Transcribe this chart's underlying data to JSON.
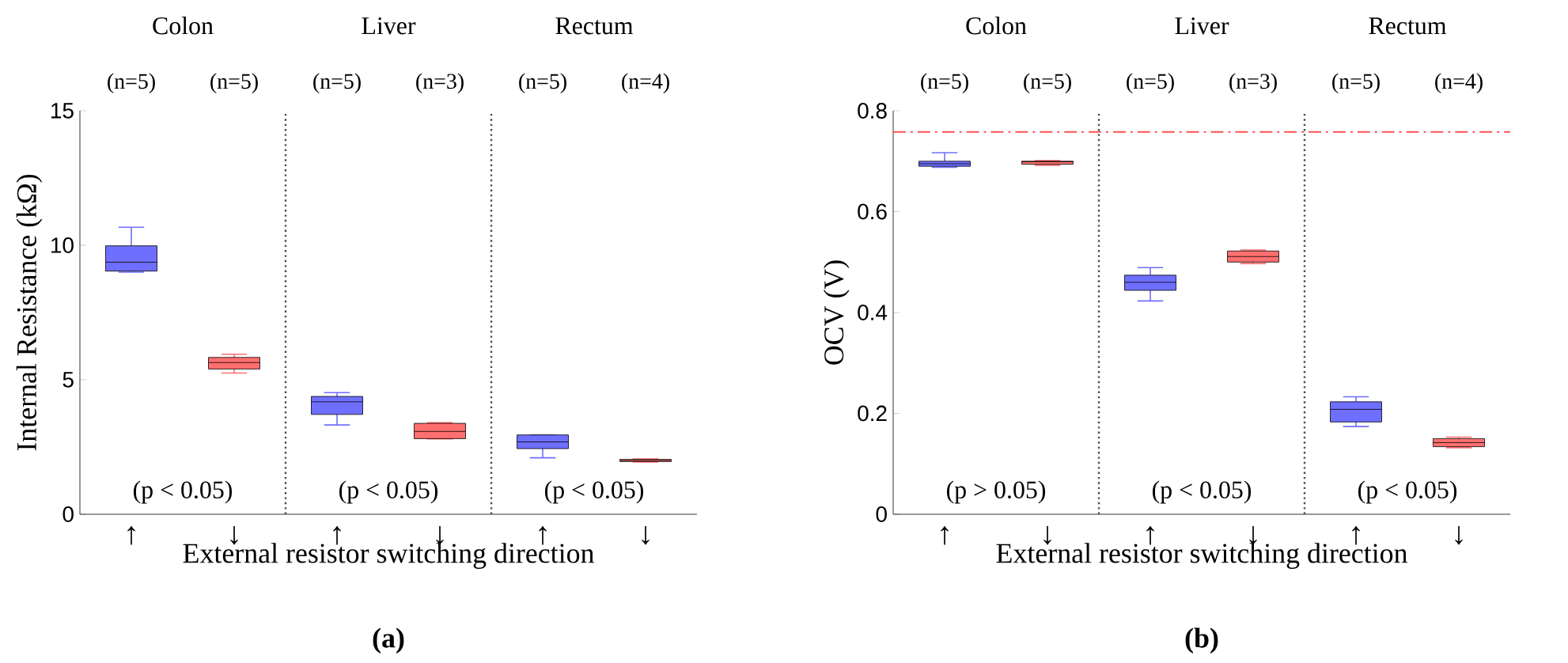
{
  "chart_data": [
    {
      "type": "box",
      "categories": [
        "↑",
        "↓",
        "↑",
        "↓",
        "↑",
        "↓"
      ],
      "xlabel": "External resistor switching direction",
      "ylabel": "Internal Resistance (kΩ)",
      "ylim": [
        0,
        15
      ],
      "yticks": [
        0,
        5,
        10,
        15
      ],
      "boxes": [
        {
          "low": 9.0,
          "q1": 9.04,
          "median": 9.37,
          "q3": 9.98,
          "high": 10.67
        },
        {
          "low": 5.25,
          "q1": 5.4,
          "median": 5.64,
          "q3": 5.83,
          "high": 5.95
        },
        {
          "low": 3.32,
          "q1": 3.71,
          "median": 4.18,
          "q3": 4.38,
          "high": 4.52
        },
        {
          "low": 2.8,
          "q1": 2.81,
          "median": 3.08,
          "q3": 3.38,
          "high": 3.4
        },
        {
          "low": 2.1,
          "q1": 2.44,
          "median": 2.69,
          "q3": 2.95,
          "high": 2.95
        },
        {
          "low": 1.94,
          "q1": 1.96,
          "median": 2.0,
          "q3": 2.04,
          "high": 2.06
        }
      ],
      "colors": [
        "#6f6fff",
        "#ff6f6f",
        "#6f6fff",
        "#ff6f6f",
        "#6f6fff",
        "#ff6f6f"
      ],
      "annotations": [
        "Colon",
        "Liver",
        "Rectum",
        "(n=5)",
        "(n=5)",
        "(n=5)",
        "(n=3)",
        "(n=5)",
        "(n=4)",
        "(p < 0.05)",
        "(p < 0.05)",
        "(p < 0.05)",
        "(a)"
      ]
    },
    {
      "type": "box",
      "categories": [
        "↑",
        "↓",
        "↑",
        "↓",
        "↑",
        "↓"
      ],
      "xlabel": "External resistor switching direction",
      "ylabel": "OCV (V)",
      "ylim": [
        0,
        0.8
      ],
      "yticks": [
        0,
        0.2,
        0.4,
        0.6,
        0.8
      ],
      "boxes": [
        {
          "low": 0.688,
          "q1": 0.69,
          "median": 0.695,
          "q3": 0.7,
          "high": 0.717
        },
        {
          "low": 0.692,
          "q1": 0.694,
          "median": 0.699,
          "q3": 0.7,
          "high": 0.701
        },
        {
          "low": 0.423,
          "q1": 0.444,
          "median": 0.46,
          "q3": 0.474,
          "high": 0.489
        },
        {
          "low": 0.497,
          "q1": 0.5,
          "median": 0.511,
          "q3": 0.522,
          "high": 0.524
        },
        {
          "low": 0.174,
          "q1": 0.183,
          "median": 0.208,
          "q3": 0.223,
          "high": 0.233
        },
        {
          "low": 0.132,
          "q1": 0.134,
          "median": 0.142,
          "q3": 0.15,
          "high": 0.153
        }
      ],
      "colors": [
        "#6f6fff",
        "#ff6f6f",
        "#6f6fff",
        "#ff6f6f",
        "#6f6fff",
        "#ff6f6f"
      ],
      "ref_lines": [
        {
          "axis": "y",
          "value": 0.758,
          "color": "#ff5050",
          "line_style": "dashdot"
        }
      ],
      "annotations": [
        "Colon",
        "Liver",
        "Rectum",
        "(n=5)",
        "(n=5)",
        "(n=5)",
        "(n=3)",
        "(n=5)",
        "(n=4)",
        "(p > 0.05)",
        "(p < 0.05)",
        "(p < 0.05)",
        "(b)"
      ]
    }
  ]
}
